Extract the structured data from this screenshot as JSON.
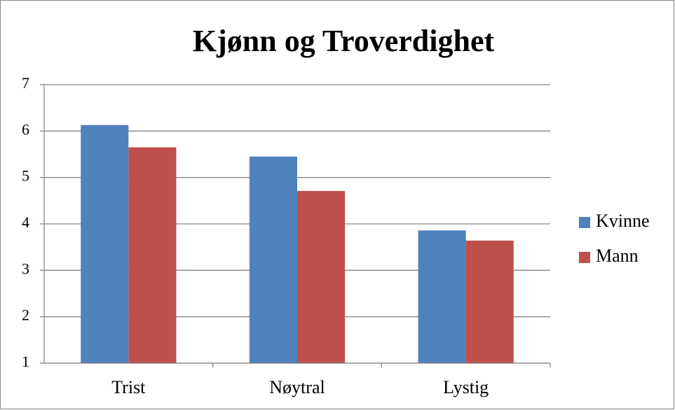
{
  "chart_data": {
    "type": "bar",
    "title": "Kjønn og Troverdighet",
    "categories": [
      "Trist",
      "Nøytral",
      "Lystig"
    ],
    "series": [
      {
        "name": "Kvinne",
        "color": "#4f81bd",
        "values": [
          6.13,
          5.45,
          3.86
        ]
      },
      {
        "name": "Mann",
        "color": "#c0504d",
        "values": [
          5.65,
          4.71,
          3.64
        ]
      }
    ],
    "ylim": [
      1,
      7
    ],
    "yticks": [
      1,
      2,
      3,
      4,
      5,
      6,
      7
    ],
    "grid": true,
    "legend": "right"
  }
}
